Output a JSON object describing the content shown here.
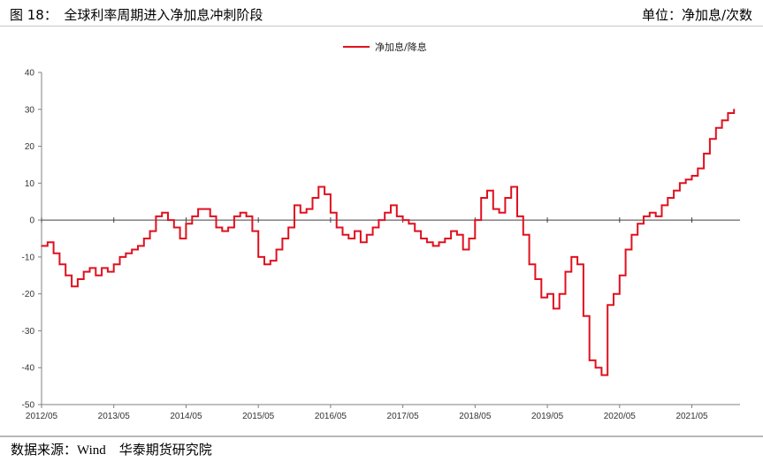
{
  "header": {
    "figure_title": "图 18：　全球利率周期进入净加息冲刺阶段",
    "unit": "单位：净加息/次数"
  },
  "footer": {
    "source_label": "数据来源：",
    "source_name": "Wind",
    "institution": "华泰期货研究院"
  },
  "colors": {
    "series": "#e0101f",
    "axis": "#808080",
    "zero_line": "#404040"
  },
  "chart_data": {
    "type": "line",
    "title": "",
    "xlabel": "",
    "ylabel": "",
    "ylim": [
      -50,
      40
    ],
    "yticks": [
      40,
      30,
      20,
      10,
      0,
      -10,
      -20,
      -30,
      -40,
      -50
    ],
    "x_tick_labels": [
      "2012/05",
      "2013/05",
      "2014/05",
      "2015/05",
      "2016/05",
      "2017/05",
      "2018/05",
      "2019/05",
      "2020/05",
      "2021/05"
    ],
    "legend": {
      "position": "top-center"
    },
    "grid": false,
    "series": [
      {
        "name": "净加息/降息",
        "color": "#e0101f",
        "x": [
          "2012/05",
          "2012/06",
          "2012/07",
          "2012/08",
          "2012/09",
          "2012/10",
          "2012/11",
          "2012/12",
          "2013/01",
          "2013/02",
          "2013/03",
          "2013/04",
          "2013/05",
          "2013/06",
          "2013/07",
          "2013/08",
          "2013/09",
          "2013/10",
          "2013/11",
          "2013/12",
          "2014/01",
          "2014/02",
          "2014/03",
          "2014/04",
          "2014/05",
          "2014/06",
          "2014/07",
          "2014/08",
          "2014/09",
          "2014/10",
          "2014/11",
          "2014/12",
          "2015/01",
          "2015/02",
          "2015/03",
          "2015/04",
          "2015/05",
          "2015/06",
          "2015/07",
          "2015/08",
          "2015/09",
          "2015/10",
          "2015/11",
          "2015/12",
          "2016/01",
          "2016/02",
          "2016/03",
          "2016/04",
          "2016/05",
          "2016/06",
          "2016/07",
          "2016/08",
          "2016/09",
          "2016/10",
          "2016/11",
          "2016/12",
          "2017/01",
          "2017/02",
          "2017/03",
          "2017/04",
          "2017/05",
          "2017/06",
          "2017/07",
          "2017/08",
          "2017/09",
          "2017/10",
          "2017/11",
          "2017/12",
          "2018/01",
          "2018/02",
          "2018/03",
          "2018/04",
          "2018/05",
          "2018/06",
          "2018/07",
          "2018/08",
          "2018/09",
          "2018/10",
          "2018/11",
          "2018/12",
          "2019/01",
          "2019/02",
          "2019/03",
          "2019/04",
          "2019/05",
          "2019/06",
          "2019/07",
          "2019/08",
          "2019/09",
          "2019/10",
          "2019/11",
          "2019/12",
          "2020/01",
          "2020/02",
          "2020/03",
          "2020/04",
          "2020/05",
          "2020/06",
          "2020/07",
          "2020/08",
          "2020/09",
          "2020/10",
          "2020/11",
          "2020/12",
          "2021/01",
          "2021/02",
          "2021/03",
          "2021/04",
          "2021/05",
          "2021/06",
          "2021/07",
          "2021/08",
          "2021/09",
          "2021/10",
          "2021/11",
          "2021/12"
        ],
        "values": [
          -7,
          -6,
          -9,
          -12,
          -15,
          -18,
          -16,
          -14,
          -13,
          -15,
          -13,
          -14,
          -12,
          -10,
          -9,
          -8,
          -7,
          -5,
          -3,
          1,
          2,
          0,
          -2,
          -5,
          -1,
          1,
          3,
          3,
          1,
          -2,
          -3,
          -2,
          1,
          2,
          1,
          -3,
          -10,
          -12,
          -11,
          -8,
          -5,
          -2,
          4,
          2,
          3,
          6,
          9,
          7,
          2,
          -2,
          -4,
          -5,
          -3,
          -6,
          -4,
          -2,
          0,
          2,
          4,
          1,
          0,
          -1,
          -3,
          -5,
          -6,
          -7,
          -6,
          -5,
          -3,
          -4,
          -8,
          -5,
          0,
          6,
          8,
          3,
          2,
          6,
          9,
          1,
          -4,
          -12,
          -16,
          -21,
          -20,
          -24,
          -20,
          -14,
          -10,
          -12,
          -26,
          -38,
          -40,
          -42,
          -23,
          -20,
          -15,
          -8,
          -4,
          -1,
          1,
          2,
          1,
          4,
          6,
          8,
          10,
          11,
          12,
          14,
          18,
          22,
          25,
          27,
          29,
          30
        ]
      }
    ]
  }
}
